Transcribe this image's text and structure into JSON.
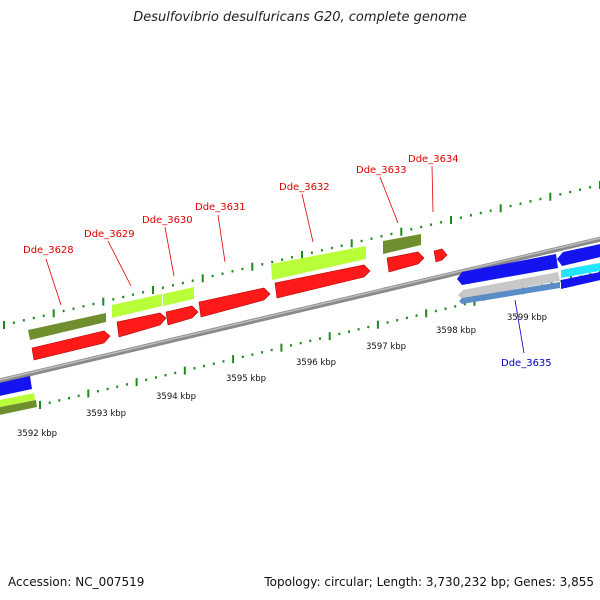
{
  "title": "Desulfovibrio desulfuricans G20, complete genome",
  "accession": "Accession: NC_007519",
  "summary": "Topology: circular; Length: 3,730,232 bp; Genes: 3,855",
  "colors": {
    "backbone": "#8a8a8a",
    "cds_red": "#ff1a1a",
    "olive": "#6f8f2f",
    "lime": "#b8ff3a",
    "blue": "#1414f0",
    "cyan": "#22e6ff",
    "grey": "#c8c8c8",
    "steel": "#5a8cc8",
    "tick_green": "#1e8a1e",
    "label_red": "#e00000",
    "label_blue": "#0000c8"
  },
  "kbp_ticks": [
    {
      "label": "3592 kbp",
      "pos": 0.035
    },
    {
      "label": "3593 kbp",
      "pos": 0.145
    },
    {
      "label": "3594 kbp",
      "pos": 0.255
    },
    {
      "label": "3595 kbp",
      "pos": 0.365
    },
    {
      "label": "3596 kbp",
      "pos": 0.478
    },
    {
      "label": "3597 kbp",
      "pos": 0.59
    },
    {
      "label": "3598 kbp",
      "pos": 0.705
    },
    {
      "label": "3599 kbp",
      "pos": 0.82
    }
  ],
  "gene_labels": [
    {
      "name": "Dde_3628",
      "color": "red"
    },
    {
      "name": "Dde_3629",
      "color": "red"
    },
    {
      "name": "Dde_3630",
      "color": "red"
    },
    {
      "name": "Dde_3631",
      "color": "red"
    },
    {
      "name": "Dde_3632",
      "color": "red"
    },
    {
      "name": "Dde_3633",
      "color": "red"
    },
    {
      "name": "Dde_3634",
      "color": "red"
    },
    {
      "name": "Dde_3635",
      "color": "blue"
    }
  ]
}
